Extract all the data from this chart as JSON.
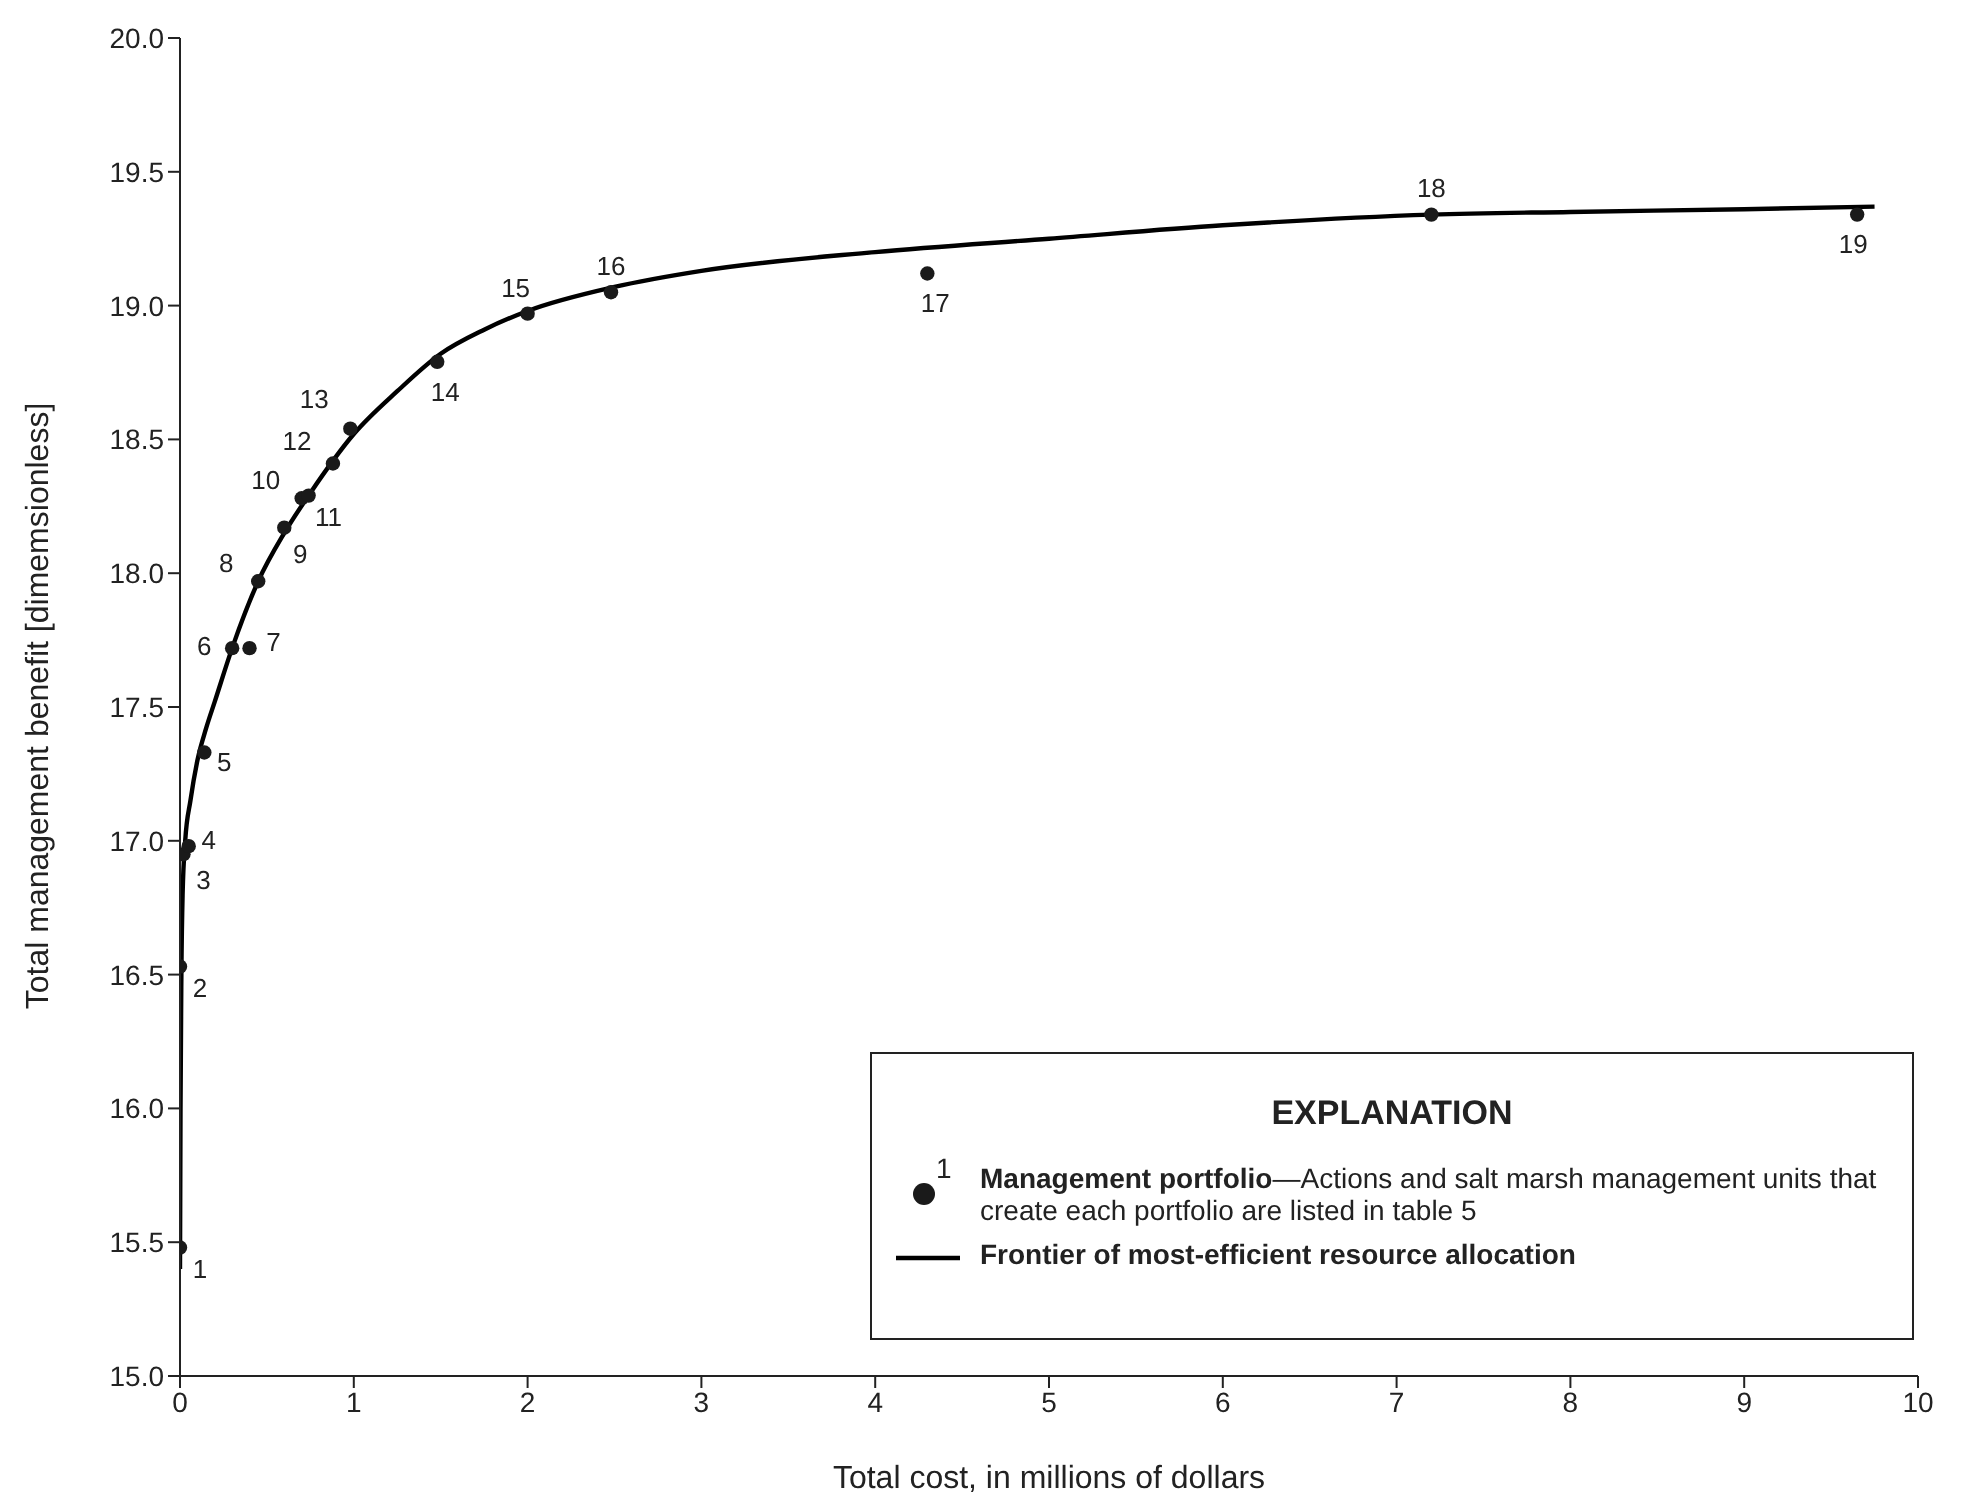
{
  "chart_data": {
    "type": "scatter",
    "xlabel": "Total cost, in millions of dollars",
    "ylabel": "Total management benefit [dimemsionless]",
    "xlim": [
      0,
      10
    ],
    "xticks": [
      0,
      1,
      2,
      3,
      4,
      5,
      6,
      7,
      8,
      9,
      10
    ],
    "ylim": [
      15,
      20
    ],
    "yticks": [
      {
        "value": 15,
        "label": "15.0"
      },
      {
        "value": 15.5,
        "label": "15.5"
      },
      {
        "value": 16,
        "label": "16.0"
      },
      {
        "value": 16.5,
        "label": "16.5"
      },
      {
        "value": 17,
        "label": "17.0"
      },
      {
        "value": 17.5,
        "label": "17.5"
      },
      {
        "value": 18,
        "label": "18.0"
      },
      {
        "value": 18.5,
        "label": "18.5"
      },
      {
        "value": 19,
        "label": "19.0"
      },
      {
        "value": 19.5,
        "label": "19.5"
      },
      {
        "value": 20,
        "label": "20.0"
      }
    ],
    "grid": false,
    "legend": "bottom right",
    "legend_title": "EXPLANATION",
    "marker": "none",
    "series": [
      {
        "type": "scatter",
        "marker": "circle",
        "name": "Management portfolio—Actions and salt marsh management units that create each portfolio are listed in table 5",
        "color": "#1a1a1a",
        "x": [
          0,
          0,
          0.02,
          0.05,
          0.14,
          0.3,
          0.4,
          0.45,
          0.6,
          0.7,
          0.74,
          0.88,
          0.98,
          1.48,
          2,
          2.48,
          4.3,
          7.2,
          9.65
        ],
        "values": [
          15.48,
          16.53,
          16.95,
          16.98,
          17.33,
          17.72,
          17.72,
          17.97,
          18.17,
          18.28,
          18.29,
          18.41,
          18.54,
          18.79,
          18.97,
          19.05,
          19.12,
          19.34,
          19.34
        ]
      },
      {
        "type": "line",
        "name": "Frontier of most-efficient resource allocation",
        "color": "#000000",
        "line_style": "solid",
        "x": [
          0,
          0.003,
          0.008,
          0.015,
          0.03,
          0.06,
          0.1,
          0.15,
          0.2,
          0.3,
          0.45,
          0.6,
          0.75,
          1,
          1.25,
          1.5,
          1.75,
          2,
          2.5,
          3,
          4,
          5,
          6,
          7.2,
          8,
          9,
          9.75
        ],
        "values": [
          15.4,
          16,
          16.5,
          16.8,
          17,
          17.15,
          17.3,
          17.42,
          17.52,
          17.72,
          17.97,
          18.15,
          18.3,
          18.52,
          18.68,
          18.82,
          18.91,
          18.98,
          19.07,
          19.13,
          19.2,
          19.25,
          19.3,
          19.34,
          19.35,
          19.36,
          19.37
        ]
      }
    ],
    "annotations": [
      {
        "text": "1",
        "x": 0,
        "y": 15.48
      },
      {
        "text": "2",
        "x": 0,
        "y": 16.53
      },
      {
        "text": "3",
        "x": 0.02,
        "y": 16.95
      },
      {
        "text": "4",
        "x": 0.05,
        "y": 16.98
      },
      {
        "text": "5",
        "x": 0.14,
        "y": 17.33
      },
      {
        "text": "6",
        "x": 0.3,
        "y": 17.72
      },
      {
        "text": "7",
        "x": 0.4,
        "y": 17.72
      },
      {
        "text": "8",
        "x": 0.45,
        "y": 17.97
      },
      {
        "text": "9",
        "x": 0.6,
        "y": 18.17
      },
      {
        "text": "10",
        "x": 0.7,
        "y": 18.28
      },
      {
        "text": "11",
        "x": 0.74,
        "y": 18.29
      },
      {
        "text": "12",
        "x": 0.88,
        "y": 18.41
      },
      {
        "text": "13",
        "x": 0.98,
        "y": 18.54
      },
      {
        "text": "14",
        "x": 1.48,
        "y": 18.79
      },
      {
        "text": "15",
        "x": 2,
        "y": 18.97
      },
      {
        "text": "16",
        "x": 2.48,
        "y": 19.05
      },
      {
        "text": "17",
        "x": 4.3,
        "y": 19.12
      },
      {
        "text": "18",
        "x": 7.2,
        "y": 19.34
      },
      {
        "text": "19",
        "x": 9.65,
        "y": 19.34
      }
    ]
  }
}
